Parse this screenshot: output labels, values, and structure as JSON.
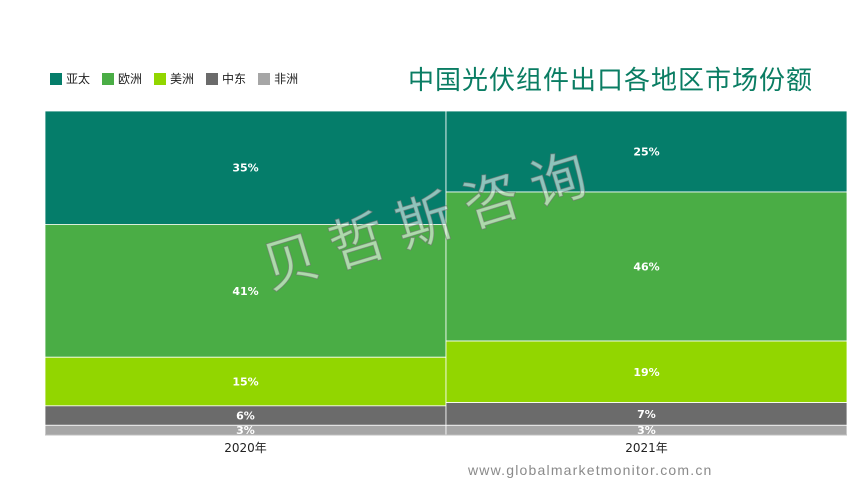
{
  "legend": [
    {
      "label": "亚太",
      "color": "#057d6a"
    },
    {
      "label": "欧洲",
      "color": "#4aad45"
    },
    {
      "label": "美洲",
      "color": "#92d600"
    },
    {
      "label": "中东",
      "color": "#6b6b6b"
    },
    {
      "label": "非洲",
      "color": "#a6a6a6"
    }
  ],
  "chart_data": {
    "type": "bar",
    "stacked": true,
    "percent": true,
    "title": "中国光伏组件出口各地区市场份额",
    "categories": [
      "2020年",
      "2021年"
    ],
    "series": [
      {
        "name": "亚太",
        "color": "#057d6a",
        "values": [
          35,
          25
        ],
        "labels": [
          "35%",
          "25%"
        ]
      },
      {
        "name": "欧洲",
        "color": "#4aad45",
        "values": [
          41,
          46
        ],
        "labels": [
          "41%",
          "46%"
        ]
      },
      {
        "name": "美洲",
        "color": "#92d600",
        "values": [
          15,
          19
        ],
        "labels": [
          "15%",
          "19%"
        ]
      },
      {
        "name": "中东",
        "color": "#6b6b6b",
        "values": [
          6,
          7
        ],
        "labels": [
          "6%",
          "7%"
        ]
      },
      {
        "name": "非洲",
        "color": "#a6a6a6",
        "values": [
          3,
          3
        ],
        "labels": [
          "3%",
          "3%"
        ]
      }
    ],
    "ylim": [
      0,
      100
    ],
    "grid": false,
    "legend_position": "top-left"
  },
  "watermark": "贝哲斯咨询",
  "footer_url": "www.globalmarketmonitor.com.cn"
}
